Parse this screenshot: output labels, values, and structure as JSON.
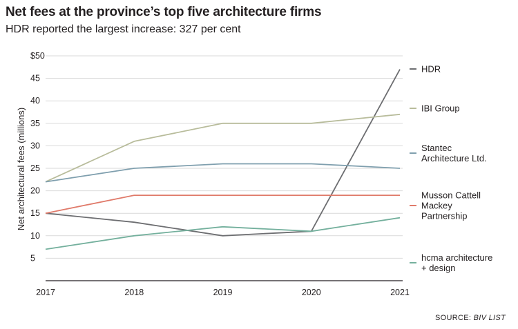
{
  "header": {
    "title": "Net fees at the province’s top five architecture firms",
    "subtitle": "HDR reported the largest increase: 327 per cent"
  },
  "footer": {
    "source_prefix": "SOURCE: ",
    "source_name": "BIV LIST"
  },
  "chart_data": {
    "type": "line",
    "title": "Net fees at the province’s top five architecture firms",
    "subtitle": "HDR reported the largest increase: 327 per cent",
    "xlabel": "",
    "ylabel": "Net architectural fees (millions)",
    "x": [
      "2017",
      "2018",
      "2019",
      "2020",
      "2021"
    ],
    "ylim": [
      0,
      50
    ],
    "yticks": [
      {
        "value": 50,
        "label": "$50"
      },
      {
        "value": 45,
        "label": "45"
      },
      {
        "value": 40,
        "label": "40"
      },
      {
        "value": 35,
        "label": "35"
      },
      {
        "value": 30,
        "label": "30"
      },
      {
        "value": 25,
        "label": "25"
      },
      {
        "value": 20,
        "label": "20"
      },
      {
        "value": 15,
        "label": "15"
      },
      {
        "value": 10,
        "label": "10"
      },
      {
        "value": 5,
        "label": "5"
      }
    ],
    "grid": "horizontal",
    "legend_position": "right",
    "series": [
      {
        "name": "HDR",
        "label_lines": [
          "HDR"
        ],
        "color": "#6d6e71",
        "values": [
          15,
          13,
          10,
          11,
          47
        ]
      },
      {
        "name": "IBI Group",
        "label_lines": [
          "IBI Group"
        ],
        "color": "#b8bc9b",
        "values": [
          22,
          31,
          35,
          35,
          37
        ]
      },
      {
        "name": "Stantec Architecture Ltd.",
        "label_lines": [
          "Stantec",
          "Architecture Ltd."
        ],
        "color": "#7f9fae",
        "values": [
          22,
          25,
          26,
          26,
          25
        ]
      },
      {
        "name": "Musson Cattell Mackey Partnership",
        "label_lines": [
          "Musson Cattell",
          "Mackey",
          "Partnership"
        ],
        "color": "#e07a6a",
        "values": [
          15,
          19,
          19,
          19,
          19
        ]
      },
      {
        "name": "hcma architecture + design",
        "label_lines": [
          "hcma architecture",
          "+ design"
        ],
        "color": "#74b09d",
        "values": [
          7,
          10,
          12,
          11,
          14
        ]
      }
    ]
  }
}
